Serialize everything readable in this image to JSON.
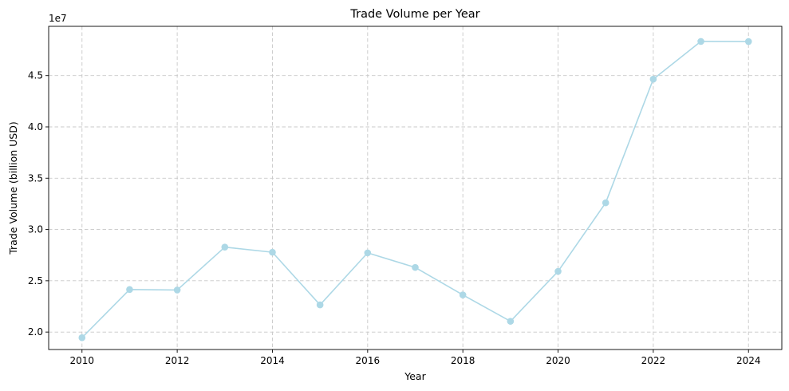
{
  "chart_data": {
    "type": "line",
    "title": "Trade Volume per Year",
    "xlabel": "Year",
    "ylabel": "Trade Volume (billion USD)",
    "y_offset_label": "1e7",
    "xlim": [
      2009.3,
      2024.7
    ],
    "ylim": [
      18300000,
      49800000
    ],
    "x_ticks": [
      2010,
      2012,
      2014,
      2016,
      2018,
      2020,
      2022,
      2024
    ],
    "x_tick_labels": [
      "2010",
      "2012",
      "2014",
      "2016",
      "2018",
      "2020",
      "2022",
      "2024"
    ],
    "y_ticks": [
      20000000,
      25000000,
      30000000,
      35000000,
      40000000,
      45000000
    ],
    "y_tick_labels": [
      "2.0",
      "2.5",
      "3.0",
      "3.5",
      "4.0",
      "4.5"
    ],
    "grid": true,
    "line_color": "#add8e6",
    "series": [
      {
        "x": [
          2010,
          2011,
          2012,
          2013,
          2014,
          2015,
          2016,
          2017,
          2018,
          2019,
          2020,
          2021,
          2022,
          2023,
          2024
        ],
        "y": [
          19450000,
          24150000,
          24100000,
          28280000,
          27780000,
          22650000,
          27720000,
          26300000,
          23620000,
          21050000,
          25920000,
          32600000,
          44650000,
          48330000,
          48320000
        ]
      }
    ]
  }
}
